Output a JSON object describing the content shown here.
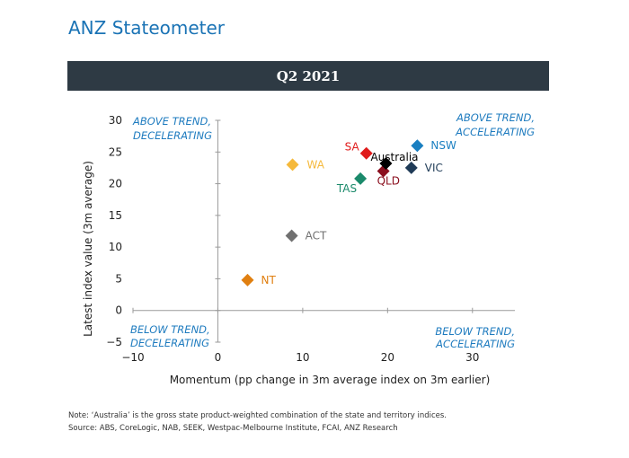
{
  "title": "ANZ Stateometer",
  "banner": "Q2 2021",
  "quadrants": {
    "top_left": [
      "ABOVE TREND,",
      "DECELERATING"
    ],
    "top_right": [
      "ABOVE TREND,",
      "ACCELERATING"
    ],
    "bottom_left": [
      "BELOW TREND,",
      "DECELERATING"
    ],
    "bottom_right": [
      "BELOW TREND,",
      "ACCELERATING"
    ]
  },
  "footnotes": {
    "note": "Note: ‘Australia’ is the gross state product-weighted combination of the state and territory indices.",
    "source": "Source: ABS, CoreLogic, NAB, SEEK, Westpac-Melbourne Institute, FCAI, ANZ Research"
  },
  "chart_data": {
    "type": "scatter",
    "title": "Q2 2021",
    "xlabel": "Momentum (pp change in 3m average index on 3m earlier)",
    "ylabel": "Latest index value (3m average)",
    "xlim": [
      -10,
      35
    ],
    "ylim": [
      -5,
      30
    ],
    "xticks": [
      -10,
      0,
      10,
      20,
      30
    ],
    "yticks": [
      -5,
      0,
      5,
      10,
      15,
      20,
      25,
      30
    ],
    "grid": false,
    "points": [
      {
        "label": "NSW",
        "x": 23.5,
        "y": 26.0,
        "color": "#1a7fc1"
      },
      {
        "label": "VIC",
        "x": 22.8,
        "y": 22.5,
        "color": "#1f3b57"
      },
      {
        "label": "QLD",
        "x": 19.5,
        "y": 22.0,
        "color": "#8b0f1e"
      },
      {
        "label": "SA",
        "x": 17.5,
        "y": 24.8,
        "color": "#e01b1b"
      },
      {
        "label": "Australia",
        "x": 19.8,
        "y": 23.2,
        "color": "#000000"
      },
      {
        "label": "WA",
        "x": 8.8,
        "y": 23.0,
        "color": "#f5b93b"
      },
      {
        "label": "TAS",
        "x": 16.8,
        "y": 20.8,
        "color": "#1b8a6b"
      },
      {
        "label": "ACT",
        "x": 8.7,
        "y": 11.8,
        "color": "#707070"
      },
      {
        "label": "NT",
        "x": 3.5,
        "y": 4.8,
        "color": "#e07f10"
      }
    ]
  }
}
